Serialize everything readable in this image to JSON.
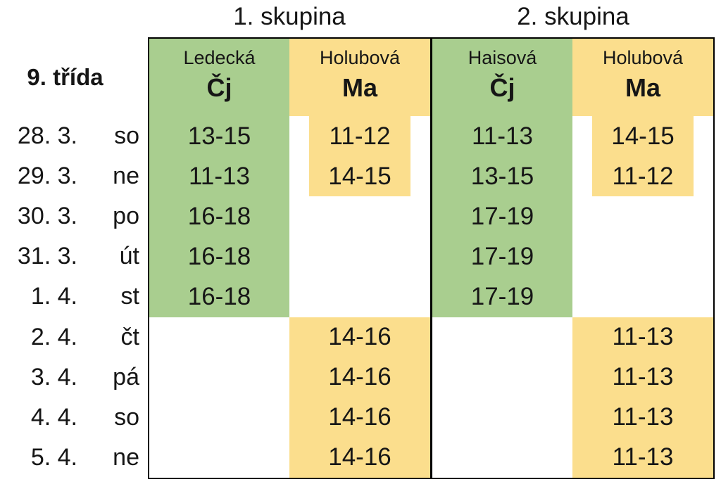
{
  "header": {
    "group1": "1. skupina",
    "group2": "2. skupina",
    "class_label": "9. třída"
  },
  "colors": {
    "green": "#a9ce8f",
    "yellow": "#fbde8d",
    "border": "#000000",
    "text": "#161616"
  },
  "columns": [
    {
      "teacher": "Ledecká",
      "subject": "Čj",
      "color": "green"
    },
    {
      "teacher": "Holubová",
      "subject": "Ma",
      "color": "yellow"
    },
    {
      "teacher": "Haisová",
      "subject": "Čj",
      "color": "green"
    },
    {
      "teacher": "Holubová",
      "subject": "Ma",
      "color": "yellow"
    }
  ],
  "rows": [
    {
      "date": "28. 3.",
      "day": "so",
      "cells": [
        "13-15",
        "11-12",
        "11-13",
        "14-15"
      ]
    },
    {
      "date": "29. 3.",
      "day": "ne",
      "cells": [
        "11-13",
        "14-15",
        "13-15",
        "11-12"
      ]
    },
    {
      "date": "30. 3.",
      "day": "po",
      "cells": [
        "16-18",
        "",
        "17-19",
        ""
      ]
    },
    {
      "date": "31. 3.",
      "day": "út",
      "cells": [
        "16-18",
        "",
        "17-19",
        ""
      ]
    },
    {
      "date": "1. 4.",
      "day": "st",
      "cells": [
        "16-18",
        "",
        "17-19",
        ""
      ]
    },
    {
      "date": "2. 4.",
      "day": "čt",
      "cells": [
        "",
        "14-16",
        "",
        "11-13"
      ]
    },
    {
      "date": "3. 4.",
      "day": "pá",
      "cells": [
        "",
        "14-16",
        "",
        "11-13"
      ]
    },
    {
      "date": "4. 4.",
      "day": "so",
      "cells": [
        "",
        "14-16",
        "",
        "11-13"
      ]
    },
    {
      "date": "5. 4.",
      "day": "ne",
      "cells": [
        "",
        "14-16",
        "",
        "11-13"
      ]
    }
  ]
}
